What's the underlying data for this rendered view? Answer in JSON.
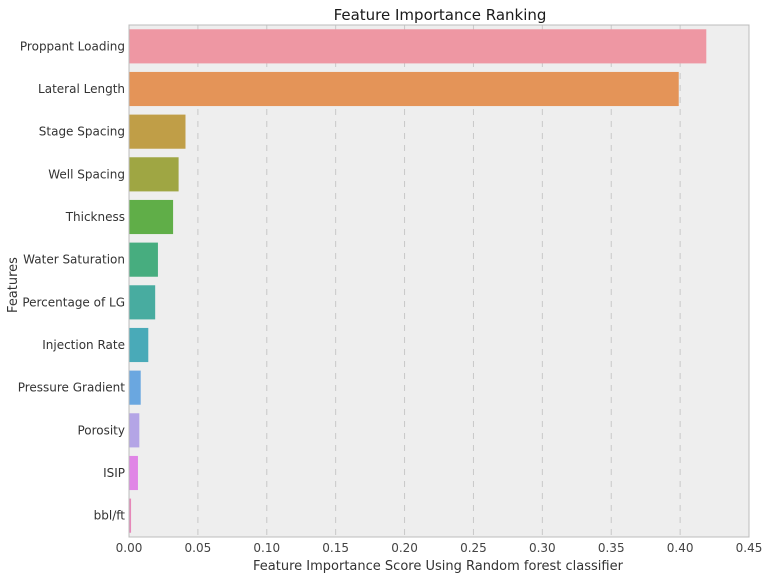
{
  "chart_data": {
    "type": "bar",
    "orientation": "horizontal",
    "title": "Feature Importance Ranking",
    "xlabel": "Feature Importance Score Using Random forest classifier",
    "ylabel": "Features",
    "xlim": [
      0,
      0.45
    ],
    "xticks": [
      0.0,
      0.05,
      0.1,
      0.15,
      0.2,
      0.25,
      0.3,
      0.35,
      0.4,
      0.45
    ],
    "xtick_labels": [
      "0.00",
      "0.05",
      "0.10",
      "0.15",
      "0.20",
      "0.25",
      "0.30",
      "0.35",
      "0.40",
      "0.45"
    ],
    "grid": {
      "x": true,
      "y": false,
      "style": "dashed"
    },
    "categories": [
      "Proppant Loading",
      "Lateral Length",
      "Stage Spacing",
      "Well Spacing",
      "Thickness",
      "Water Saturation",
      "Percentage of LG",
      "Injection Rate",
      "Pressure Gradient",
      "Porosity",
      "ISIP",
      "bbl/ft"
    ],
    "values": [
      0.419,
      0.399,
      0.041,
      0.036,
      0.032,
      0.021,
      0.019,
      0.014,
      0.0085,
      0.0075,
      0.0065,
      0.0015
    ],
    "colors": [
      "#ee97a3",
      "#e49458",
      "#c09e47",
      "#9fa643",
      "#60ae48",
      "#47ad7f",
      "#48aca0",
      "#49aab8",
      "#6aa7e0",
      "#b4a5e6",
      "#e085e6",
      "#e687b9"
    ]
  }
}
